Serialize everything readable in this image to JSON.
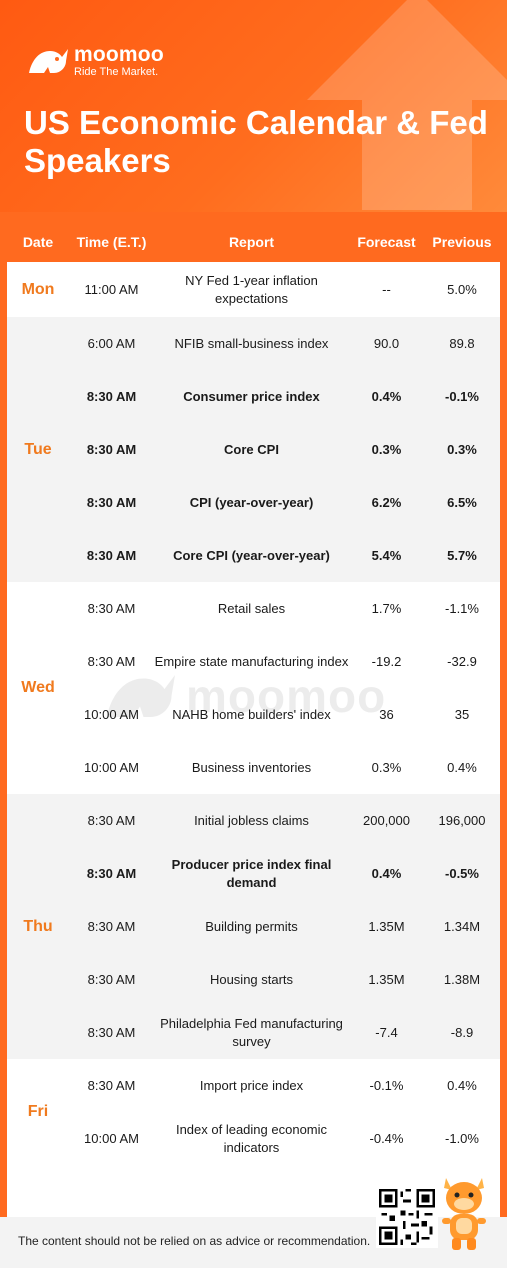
{
  "brand": {
    "name": "moomoo",
    "tagline": "Ride The Market."
  },
  "title": "US Economic Calendar & Fed Speakers",
  "colors": {
    "accent": "#ff6a1f",
    "day_text": "#f07a1e"
  },
  "table": {
    "headers": [
      "Date",
      "Time (E.T.)",
      "Report",
      "Forecast",
      "Previous"
    ],
    "groups": [
      {
        "day": "Mon",
        "rows": [
          {
            "time": "11:00 AM",
            "report": "NY Fed 1-year inflation expectations",
            "forecast": "--",
            "previous": "5.0%",
            "bold": false
          }
        ]
      },
      {
        "day": "Tue",
        "rows": [
          {
            "time": "6:00 AM",
            "report": "NFIB small-business index",
            "forecast": "90.0",
            "previous": "89.8",
            "bold": false
          },
          {
            "time": "8:30 AM",
            "report": "Consumer price index",
            "forecast": "0.4%",
            "previous": "-0.1%",
            "bold": true
          },
          {
            "time": "8:30 AM",
            "report": "Core CPI",
            "forecast": "0.3%",
            "previous": "0.3%",
            "bold": true
          },
          {
            "time": "8:30 AM",
            "report": "CPI (year-over-year)",
            "forecast": "6.2%",
            "previous": "6.5%",
            "bold": true
          },
          {
            "time": "8:30 AM",
            "report": "Core CPI (year-over-year)",
            "forecast": "5.4%",
            "previous": "5.7%",
            "bold": true
          }
        ]
      },
      {
        "day": "Wed",
        "rows": [
          {
            "time": "8:30 AM",
            "report": "Retail sales",
            "forecast": "1.7%",
            "previous": "-1.1%",
            "bold": false
          },
          {
            "time": "8:30 AM",
            "report": "Empire state manufacturing index",
            "forecast": "-19.2",
            "previous": "-32.9",
            "bold": false
          },
          {
            "time": "10:00 AM",
            "report": "NAHB home builders' index",
            "forecast": "36",
            "previous": "35",
            "bold": false
          },
          {
            "time": "10:00 AM",
            "report": "Business inventories",
            "forecast": "0.3%",
            "previous": "0.4%",
            "bold": false
          }
        ]
      },
      {
        "day": "Thu",
        "rows": [
          {
            "time": "8:30 AM",
            "report": "Initial jobless claims",
            "forecast": "200,000",
            "previous": "196,000",
            "bold": false
          },
          {
            "time": "8:30 AM",
            "report": "Producer price index final demand",
            "forecast": "0.4%",
            "previous": "-0.5%",
            "bold": true
          },
          {
            "time": "8:30 AM",
            "report": "Building permits",
            "forecast": "1.35M",
            "previous": "1.34M",
            "bold": false
          },
          {
            "time": "8:30 AM",
            "report": "Housing starts",
            "forecast": "1.35M",
            "previous": "1.38M",
            "bold": false
          },
          {
            "time": "8:30 AM",
            "report": "Philadelphia Fed manufacturing survey",
            "forecast": "-7.4",
            "previous": "-8.9",
            "bold": false
          }
        ]
      },
      {
        "day": "Fri",
        "rows": [
          {
            "time": "8:30 AM",
            "report": "Import price index",
            "forecast": "-0.1%",
            "previous": "0.4%",
            "bold": false
          },
          {
            "time": "10:00 AM",
            "report": "Index of leading economic indicators",
            "forecast": "-0.4%",
            "previous": "-1.0%",
            "bold": false
          }
        ]
      }
    ]
  },
  "watermark": "moomoo",
  "disclaimer": "The content should not be relied on as advice or recommendation."
}
